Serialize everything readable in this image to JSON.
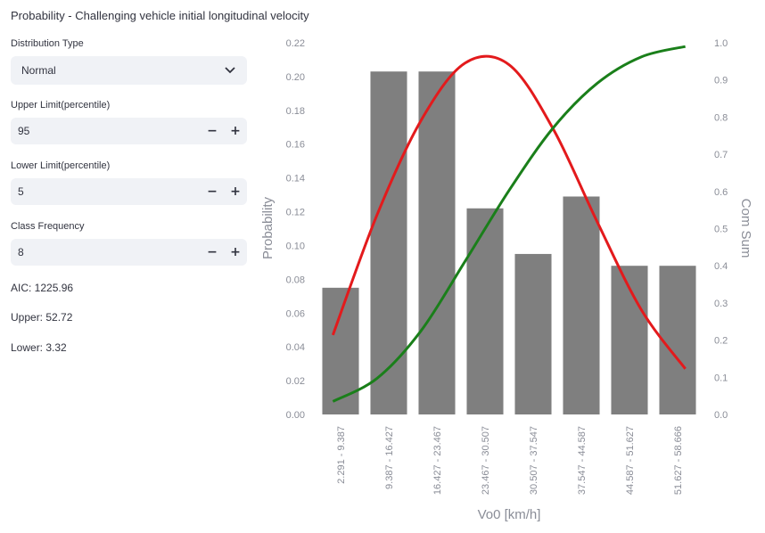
{
  "page_title": "Probability - Challenging vehicle initial longitudinal velocity",
  "controls": {
    "distribution": {
      "label": "Distribution Type",
      "value": "Normal"
    },
    "upper_limit": {
      "label": "Upper Limit(percentile)",
      "value": "95"
    },
    "lower_limit": {
      "label": "Lower Limit(percentile)",
      "value": "5"
    },
    "class_frequency": {
      "label": "Class Frequency",
      "value": "8"
    },
    "minus_label": "−",
    "plus_label": "+"
  },
  "stats": {
    "aic": "AIC: 1225.96",
    "upper": "Upper: 52.72",
    "lower": "Lower: 3.32"
  },
  "chart_data": {
    "type": "bar",
    "xlabel": "Vo0 [km/h]",
    "ylabel": "Probability",
    "y2label": "Com Sum",
    "categories": [
      "2.291 - 9.387",
      "9.387 - 16.427",
      "16.427 - 23.467",
      "23.467 - 30.507",
      "30.507 - 37.547",
      "37.547 - 44.587",
      "44.587 - 51.627",
      "51.627 - 58.666"
    ],
    "values": [
      0.075,
      0.203,
      0.203,
      0.122,
      0.095,
      0.129,
      0.088,
      0.088
    ],
    "ylim": [
      0,
      0.22
    ],
    "yticks": [
      "0.00",
      "0.02",
      "0.04",
      "0.06",
      "0.08",
      "0.10",
      "0.12",
      "0.14",
      "0.16",
      "0.18",
      "0.20",
      "0.22"
    ],
    "y2lim": [
      0,
      1.0
    ],
    "y2ticks": [
      "0.0",
      "0.1",
      "0.2",
      "0.3",
      "0.4",
      "0.5",
      "0.6",
      "0.7",
      "0.8",
      "0.9",
      "1.0"
    ],
    "pdf_curve": [
      0.047,
      0.118,
      0.174,
      0.208,
      0.207,
      0.169,
      0.114,
      0.062,
      0.027
    ],
    "cdf_curve": [
      0.035,
      0.097,
      0.225,
      0.412,
      0.603,
      0.771,
      0.891,
      0.962,
      0.99
    ],
    "colors": {
      "bars": "#7f7f7f",
      "pdf": "#e31a1c",
      "cdf": "#1a7f1a",
      "text": "#8a8d97"
    }
  }
}
